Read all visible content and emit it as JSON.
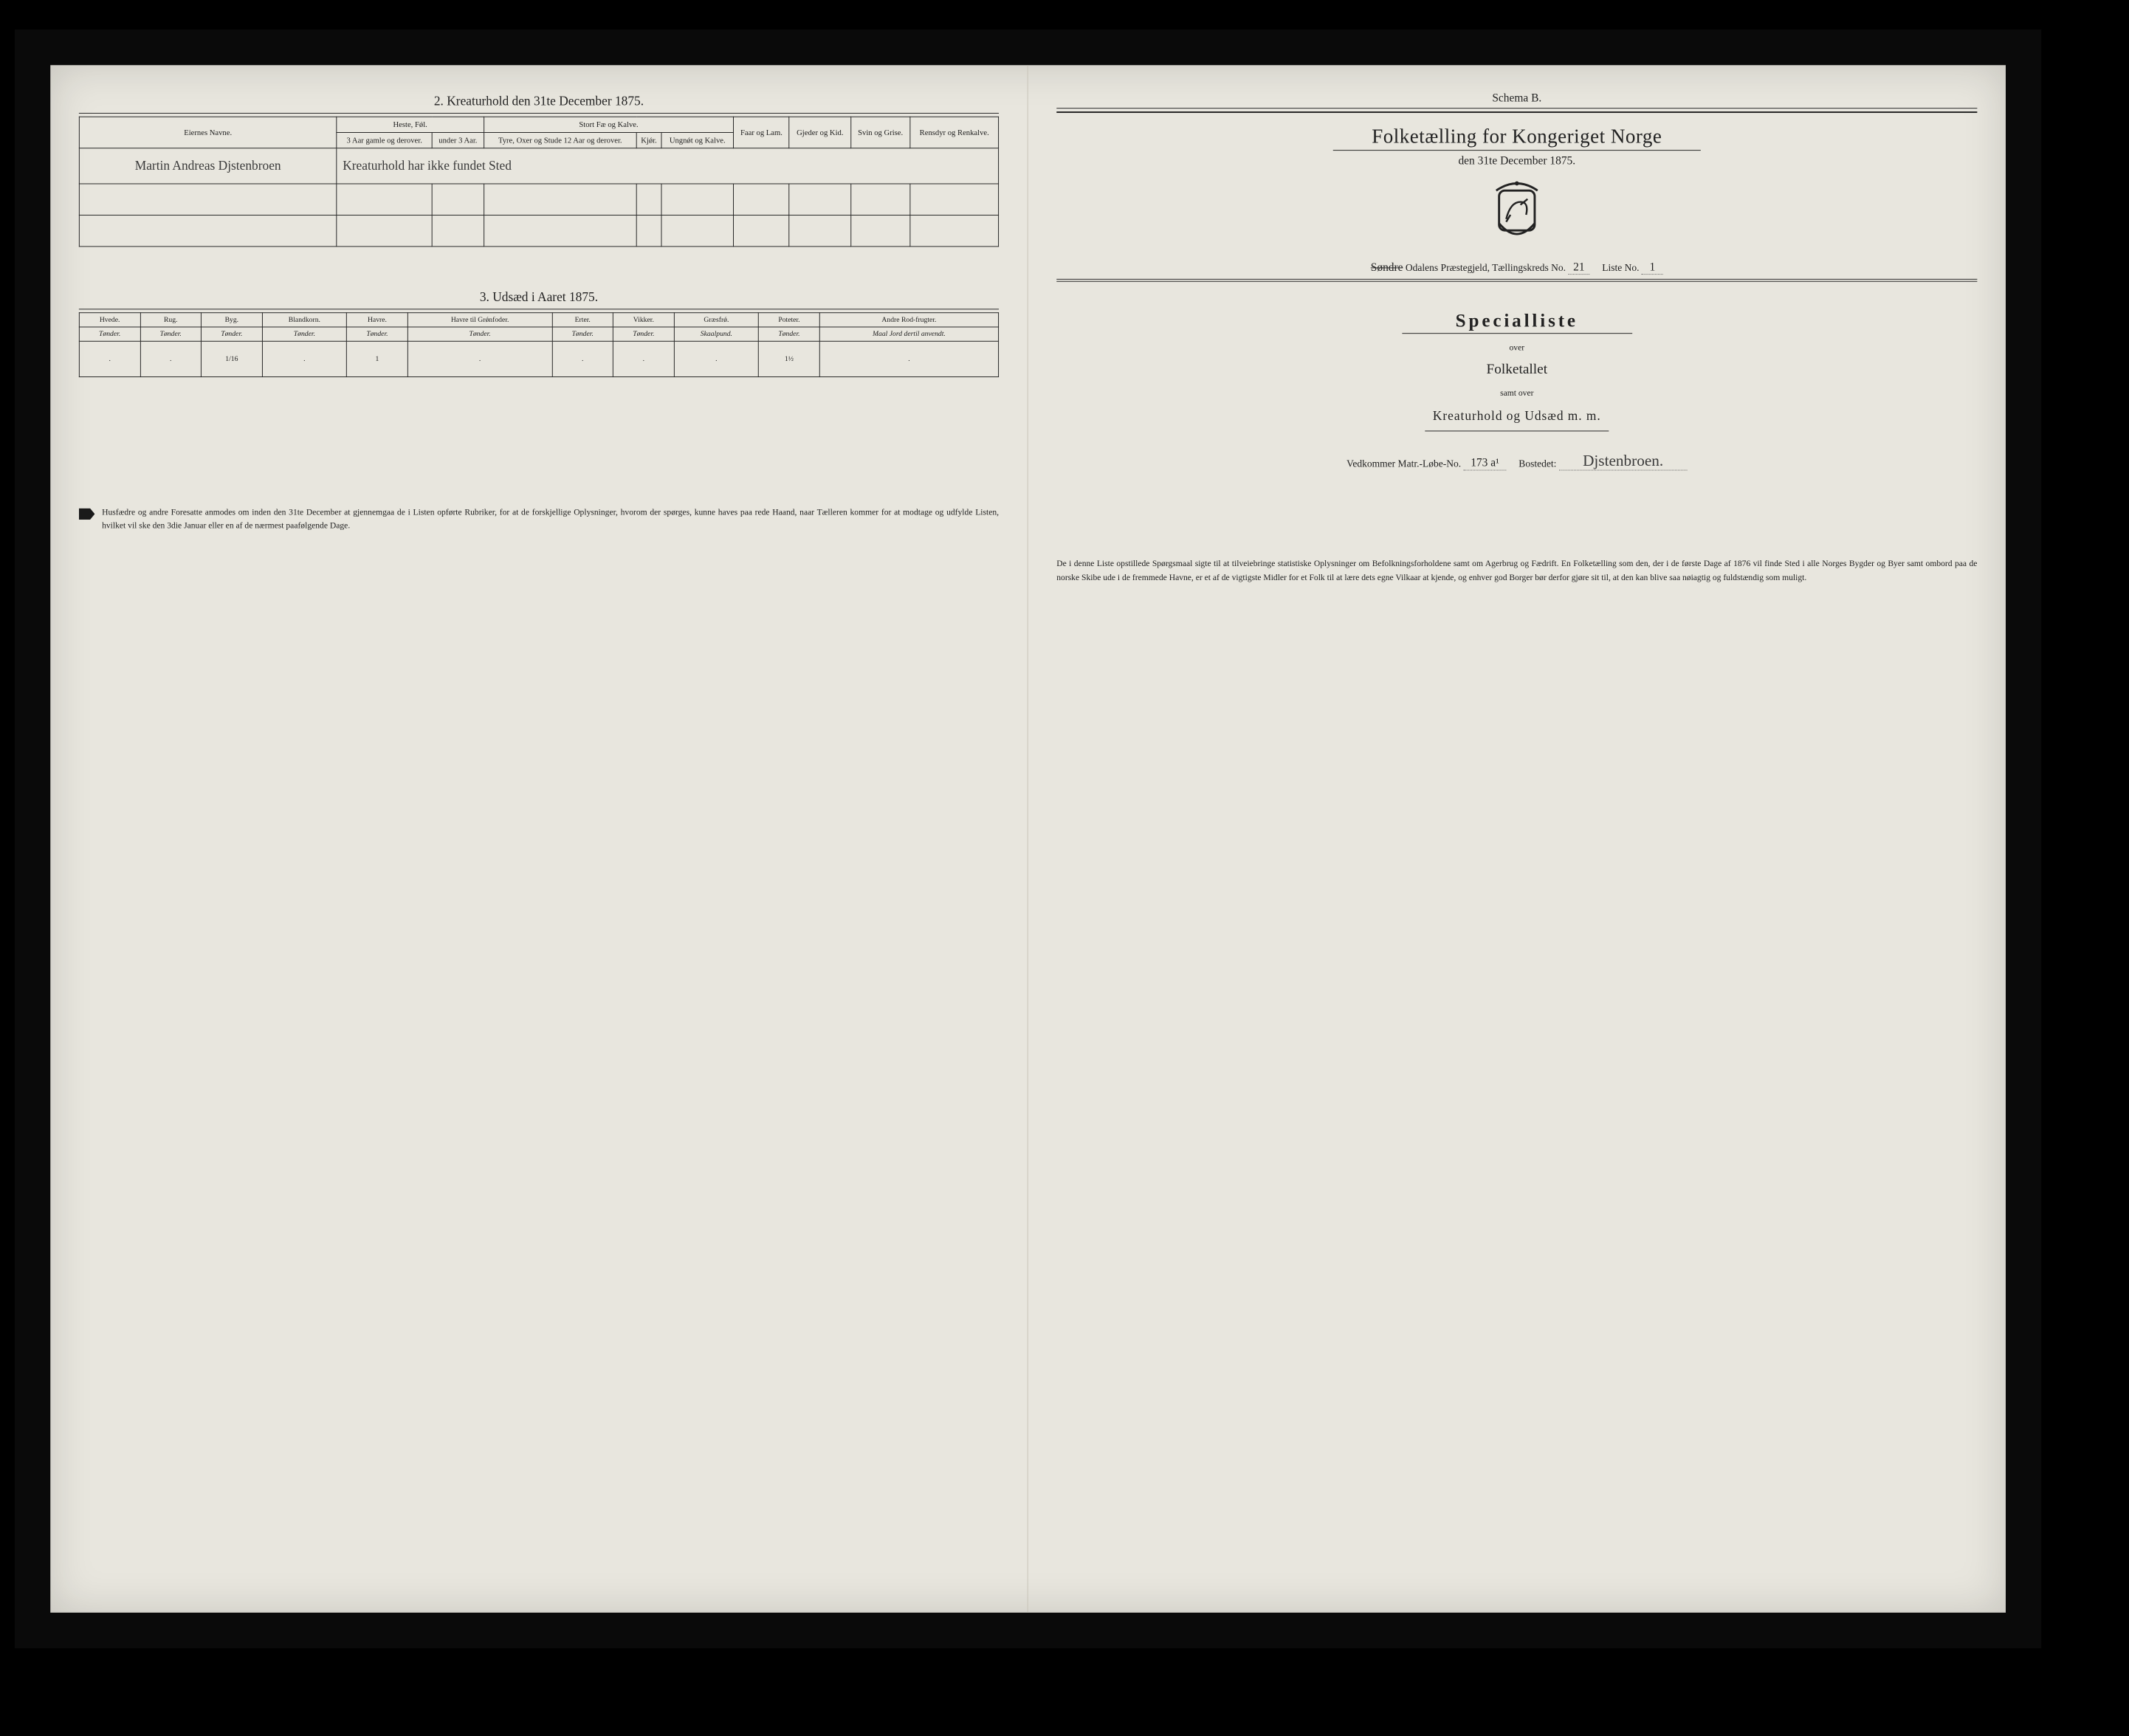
{
  "colors": {
    "paper": "#e8e6de",
    "ink": "#222222",
    "border": "#222222",
    "shadow": "rgba(0,0,0,0.15)"
  },
  "left": {
    "section2": {
      "title": "2.  Kreaturhold den 31te December 1875.",
      "headers": {
        "owner": "Eiernes Navne.",
        "heste": "Heste, Fǿl.",
        "stort": "Stort Fæ og Kalve.",
        "faar": "Faar og Lam.",
        "gjeder": "Gjeder og Kid.",
        "svin": "Svin og Grise.",
        "rensdyr": "Rensdyr og Renkalve.",
        "heste_sub1": "3 Aar gamle og derover.",
        "heste_sub2": "under 3 Aar.",
        "stort_sub1": "Tyre, Oxer og Stude 12 Aar og derover.",
        "stort_sub2": "Kjǿr.",
        "stort_sub3": "Ungnǿt og Kalve."
      },
      "rows": [
        {
          "owner": "Martin Andreas Djstenbroen",
          "note": "Kreaturhold har ikke fundet Sted"
        }
      ]
    },
    "section3": {
      "title": "3.  Udsæd i Aaret 1875.",
      "cols": [
        {
          "h": "Hvede.",
          "s": "Tønder."
        },
        {
          "h": "Rug.",
          "s": "Tønder."
        },
        {
          "h": "Byg.",
          "s": "Tønder."
        },
        {
          "h": "Blandkorn.",
          "s": "Tønder."
        },
        {
          "h": "Havre.",
          "s": "Tønder."
        },
        {
          "h": "Havre til Grǿnfoder.",
          "s": "Tønder."
        },
        {
          "h": "Erter.",
          "s": "Tønder."
        },
        {
          "h": "Vikker.",
          "s": "Tønder."
        },
        {
          "h": "Græsfrǿ.",
          "s": "Skaalpund."
        },
        {
          "h": "Poteter.",
          "s": "Tønder."
        },
        {
          "h": "Andre Rod-frugter.",
          "s": "Maal Jord dertil anvendt."
        }
      ],
      "values": [
        ".",
        ".",
        "1/16",
        ".",
        "1",
        ".",
        ".",
        ".",
        ".",
        "1½",
        "."
      ]
    },
    "note": "Husfædre og andre Foresatte anmodes om inden den 31te December at gjennemgaa de i Listen opførte Rubriker, for at de forskjellige Oplysninger, hvorom der spørges, kunne haves paa rede Haand, naar Tælleren kommer for at modtage og udfylde Listen, hvilket vil ske den 3die Januar eller en af de nærmest paafølgende Dage."
  },
  "right": {
    "schema": "Schema B.",
    "title": "Folketælling for Kongeriget Norge",
    "date": "den 31te December 1875.",
    "parish_prefix_hand": "Søndre",
    "parish_suffix": "Odalens   Præstegjeld,  Tællingskreds No.",
    "kreds_no": "21",
    "liste_label": "Liste No.",
    "liste_no": "1",
    "specialliste": "Specialliste",
    "over": "over",
    "folketallet": "Folketallet",
    "samt": "samt over",
    "kreatur": "Kreaturhold og Udsæd m. m.",
    "vedkommer": "Vedkommer Matr.-Løbe-No.",
    "matr_no": "173 a¹",
    "bostedet_label": "Bostedet:",
    "bostedet": "Djstenbroen.",
    "paragraph": "De i denne Liste opstillede Spørgsmaal sigte til at tilveiebringe statistiske Oplysninger om Befolkningsforholdene samt om Agerbrug og Fædrift.  En Folketælling som den, der i de første Dage af 1876 vil finde Sted i alle Norges Bygder og Byer samt ombord paa de norske Skibe ude i de fremmede Havne, er et af de vigtigste Midler for et Folk til at lære dets egne Vilkaar at kjende, og enhver god Borger bør derfor gjøre sit til, at den kan blive saa nøiagtig og fuldstændig som muligt."
  }
}
